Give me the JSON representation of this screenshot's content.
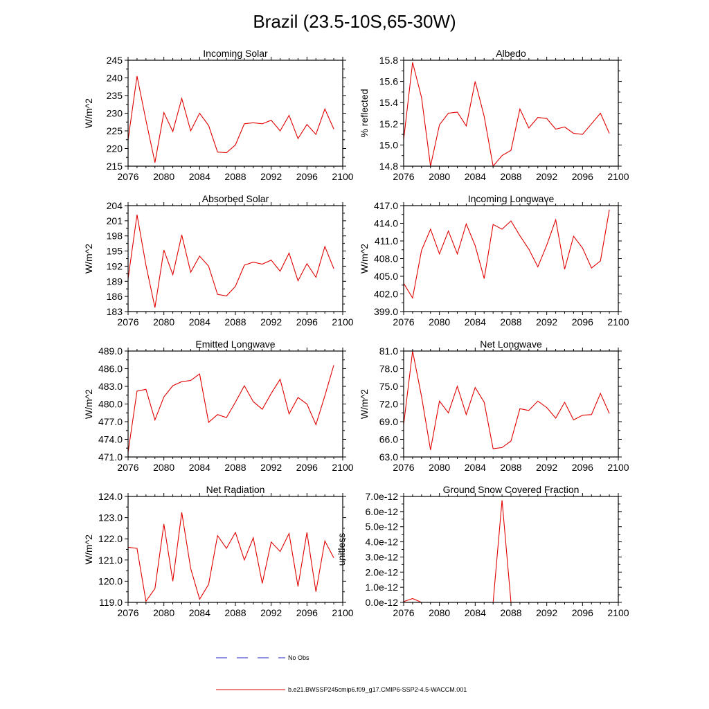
{
  "figure": {
    "title": "Brazil (23.5-10S,65-30W)",
    "legend": {
      "no_obs_label": "No Obs",
      "model_label": "b.e21.BWSSP245cmip6.f09_g17.CMIP6-SSP2-4.5-WACCM.001",
      "no_obs_color": "#1f1fbf",
      "model_color": "#e00000"
    },
    "line_color": "#e00000"
  },
  "chart_data": [
    {
      "type": "line",
      "title": "Incoming Solar",
      "ylabel": "W/m^2",
      "xlim": [
        2076,
        2100
      ],
      "ylim": [
        215,
        245
      ],
      "xticks": [
        2076,
        2080,
        2084,
        2088,
        2092,
        2096,
        2100
      ],
      "xticklabels": [
        "2076",
        "2080",
        "2084",
        "2088",
        "2092",
        "2096",
        "2100"
      ],
      "yticks": [
        215,
        220,
        225,
        230,
        235,
        240,
        245
      ],
      "yticklabels": [
        "215",
        "220",
        "225",
        "230",
        "235",
        "240",
        "245"
      ],
      "x": [
        2076,
        2077,
        2078,
        2079,
        2080,
        2081,
        2082,
        2083,
        2084,
        2085,
        2086,
        2087,
        2088,
        2089,
        2090,
        2091,
        2092,
        2093,
        2094,
        2095,
        2096,
        2097,
        2098,
        2099
      ],
      "values": [
        222.5,
        240.5,
        228.0,
        216.0,
        230.2,
        224.8,
        234.2,
        225.0,
        230.0,
        226.5,
        219.0,
        218.8,
        221.0,
        227.0,
        227.3,
        227.0,
        228.0,
        225.0,
        229.4,
        222.8,
        226.8,
        224.0,
        231.2,
        225.5
      ]
    },
    {
      "type": "line",
      "title": "Albedo",
      "ylabel": "% reflected",
      "xlim": [
        2076,
        2100
      ],
      "ylim": [
        14.8,
        15.8
      ],
      "xticks": [
        2076,
        2080,
        2084,
        2088,
        2092,
        2096,
        2100
      ],
      "xticklabels": [
        "2076",
        "2080",
        "2084",
        "2088",
        "2092",
        "2096",
        "2100"
      ],
      "yticks": [
        14.8,
        15.0,
        15.2,
        15.4,
        15.6,
        15.8
      ],
      "yticklabels": [
        "14.8",
        "15.0",
        "15.2",
        "15.4",
        "15.6",
        "15.8"
      ],
      "x": [
        2076,
        2077,
        2078,
        2079,
        2080,
        2081,
        2082,
        2083,
        2084,
        2085,
        2086,
        2087,
        2088,
        2089,
        2090,
        2091,
        2092,
        2093,
        2094,
        2095,
        2096,
        2097,
        2098,
        2099
      ],
      "values": [
        15.05,
        15.78,
        15.45,
        14.8,
        15.19,
        15.3,
        15.31,
        15.18,
        15.6,
        15.27,
        14.8,
        14.9,
        14.95,
        15.34,
        15.16,
        15.26,
        15.25,
        15.15,
        15.17,
        15.11,
        15.1,
        15.2,
        15.3,
        15.11
      ]
    },
    {
      "type": "line",
      "title": "Absorbed Solar",
      "ylabel": "W/m^2",
      "xlim": [
        2076,
        2100
      ],
      "ylim": [
        183,
        204
      ],
      "xticks": [
        2076,
        2080,
        2084,
        2088,
        2092,
        2096,
        2100
      ],
      "xticklabels": [
        "2076",
        "2080",
        "2084",
        "2088",
        "2092",
        "2096",
        "2100"
      ],
      "yticks": [
        183,
        186,
        189,
        192,
        195,
        198,
        201,
        204
      ],
      "yticklabels": [
        "183",
        "186",
        "189",
        "192",
        "195",
        "198",
        "201",
        "204"
      ],
      "x": [
        2076,
        2077,
        2078,
        2079,
        2080,
        2081,
        2082,
        2083,
        2084,
        2085,
        2086,
        2087,
        2088,
        2089,
        2090,
        2091,
        2092,
        2093,
        2094,
        2095,
        2096,
        2097,
        2098,
        2099
      ],
      "values": [
        189.5,
        202.2,
        192.2,
        183.8,
        195.2,
        190.3,
        198.2,
        190.8,
        194.0,
        192.0,
        186.4,
        186.1,
        188.0,
        192.2,
        192.8,
        192.4,
        193.2,
        191.0,
        194.6,
        189.1,
        192.5,
        189.8,
        195.9,
        191.5
      ]
    },
    {
      "type": "line",
      "title": "Incoming Longwave",
      "ylabel": "W/m^2",
      "xlim": [
        2076,
        2100
      ],
      "ylim": [
        399.0,
        417.0
      ],
      "xticks": [
        2076,
        2080,
        2084,
        2088,
        2092,
        2096,
        2100
      ],
      "xticklabels": [
        "2076",
        "2080",
        "2084",
        "2088",
        "2092",
        "2096",
        "2100"
      ],
      "yticks": [
        399.0,
        402.0,
        405.0,
        408.0,
        411.0,
        414.0,
        417.0
      ],
      "yticklabels": [
        "399.0",
        "402.0",
        "405.0",
        "408.0",
        "411.0",
        "414.0",
        "417.0"
      ],
      "x": [
        2076,
        2077,
        2078,
        2079,
        2080,
        2081,
        2082,
        2083,
        2084,
        2085,
        2086,
        2087,
        2088,
        2089,
        2090,
        2091,
        2092,
        2093,
        2094,
        2095,
        2096,
        2097,
        2098,
        2099
      ],
      "values": [
        403.8,
        401.3,
        409.4,
        413.0,
        408.8,
        412.7,
        408.8,
        413.9,
        410.2,
        404.6,
        413.8,
        413.0,
        414.4,
        411.9,
        409.6,
        406.6,
        410.3,
        414.6,
        406.2,
        411.8,
        409.8,
        406.4,
        407.6,
        416.3
      ]
    },
    {
      "type": "line",
      "title": "Emitted Longwave",
      "ylabel": "W/m^2",
      "xlim": [
        2076,
        2100
      ],
      "ylim": [
        471.0,
        489.0
      ],
      "xticks": [
        2076,
        2080,
        2084,
        2088,
        2092,
        2096,
        2100
      ],
      "xticklabels": [
        "2076",
        "2080",
        "2084",
        "2088",
        "2092",
        "2096",
        "2100"
      ],
      "yticks": [
        471.0,
        474.0,
        477.0,
        480.0,
        483.0,
        486.0,
        489.0
      ],
      "yticklabels": [
        "471.0",
        "474.0",
        "477.0",
        "480.0",
        "483.0",
        "486.0",
        "489.0"
      ],
      "x": [
        2076,
        2077,
        2078,
        2079,
        2080,
        2081,
        2082,
        2083,
        2084,
        2085,
        2086,
        2087,
        2088,
        2089,
        2090,
        2091,
        2092,
        2093,
        2094,
        2095,
        2096,
        2097,
        2098,
        2099
      ],
      "values": [
        471.8,
        482.2,
        482.5,
        477.3,
        481.2,
        483.1,
        483.8,
        484.0,
        485.1,
        476.9,
        478.2,
        477.7,
        480.3,
        483.1,
        480.4,
        479.1,
        481.8,
        484.2,
        478.3,
        481.1,
        480.0,
        476.5,
        481.4,
        486.6
      ]
    },
    {
      "type": "line",
      "title": "Net Longwave",
      "ylabel": "W/m^2",
      "xlim": [
        2076,
        2100
      ],
      "ylim": [
        63.0,
        81.0
      ],
      "xticks": [
        2076,
        2080,
        2084,
        2088,
        2092,
        2096,
        2100
      ],
      "xticklabels": [
        "2076",
        "2080",
        "2084",
        "2088",
        "2092",
        "2096",
        "2100"
      ],
      "yticks": [
        63.0,
        66.0,
        69.0,
        72.0,
        75.0,
        78.0,
        81.0
      ],
      "yticklabels": [
        "63.0",
        "66.0",
        "69.0",
        "72.0",
        "75.0",
        "78.0",
        "81.0"
      ],
      "x": [
        2076,
        2077,
        2078,
        2079,
        2080,
        2081,
        2082,
        2083,
        2084,
        2085,
        2086,
        2087,
        2088,
        2089,
        2090,
        2091,
        2092,
        2093,
        2094,
        2095,
        2096,
        2097,
        2098,
        2099
      ],
      "values": [
        68.5,
        81.0,
        73.3,
        64.2,
        72.5,
        70.5,
        75.0,
        70.2,
        74.8,
        72.3,
        64.4,
        64.6,
        65.7,
        71.2,
        70.9,
        72.5,
        71.4,
        69.6,
        72.3,
        69.3,
        70.1,
        70.2,
        73.8,
        70.4
      ]
    },
    {
      "type": "line",
      "title": "Net Radiation",
      "ylabel": "W/m^2",
      "xlim": [
        2076,
        2100
      ],
      "ylim": [
        119.0,
        124.0
      ],
      "xticks": [
        2076,
        2080,
        2084,
        2088,
        2092,
        2096,
        2100
      ],
      "xticklabels": [
        "2076",
        "2080",
        "2084",
        "2088",
        "2092",
        "2096",
        "2100"
      ],
      "yticks": [
        119.0,
        120.0,
        121.0,
        122.0,
        123.0,
        124.0
      ],
      "yticklabels": [
        "119.0",
        "120.0",
        "121.0",
        "122.0",
        "123.0",
        "124.0"
      ],
      "x": [
        2076,
        2077,
        2078,
        2079,
        2080,
        2081,
        2082,
        2083,
        2084,
        2085,
        2086,
        2087,
        2088,
        2089,
        2090,
        2091,
        2092,
        2093,
        2094,
        2095,
        2096,
        2097,
        2098,
        2099
      ],
      "values": [
        121.6,
        121.55,
        119.05,
        119.65,
        122.7,
        120.0,
        123.25,
        120.6,
        119.15,
        119.85,
        122.15,
        121.55,
        122.3,
        121.0,
        122.05,
        119.9,
        121.85,
        121.4,
        122.25,
        119.75,
        122.3,
        119.5,
        121.9,
        121.1
      ]
    },
    {
      "type": "line",
      "title": "Ground Snow Covered Fraction",
      "ylabel": "unitless",
      "xlim": [
        2076,
        2100
      ],
      "ylim": [
        0,
        7e-12
      ],
      "xticks": [
        2076,
        2080,
        2084,
        2088,
        2092,
        2096,
        2100
      ],
      "xticklabels": [
        "2076",
        "2080",
        "2084",
        "2088",
        "2092",
        "2096",
        "2100"
      ],
      "yticks": [
        0,
        1e-12,
        2e-12,
        3e-12,
        4e-12,
        5e-12,
        6e-12,
        7e-12
      ],
      "yticklabels": [
        "0.0e-12",
        "1.0e-12",
        "2.0e-12",
        "3.0e-12",
        "4.0e-12",
        "5.0e-12",
        "6.0e-12",
        "7.0e-12"
      ],
      "x": [
        2076,
        2077,
        2078,
        2079,
        2080,
        2081,
        2082,
        2083,
        2084,
        2085,
        2086,
        2087,
        2088,
        2089,
        2090,
        2091,
        2092,
        2093,
        2094,
        2095,
        2096,
        2097,
        2098,
        2099
      ],
      "values": [
        5e-14,
        2.5e-13,
        0,
        0,
        0,
        0,
        0,
        0,
        0,
        0,
        0,
        6.75e-12,
        0,
        0,
        0,
        0,
        0,
        0,
        0,
        0,
        0,
        0,
        0,
        0
      ]
    }
  ]
}
